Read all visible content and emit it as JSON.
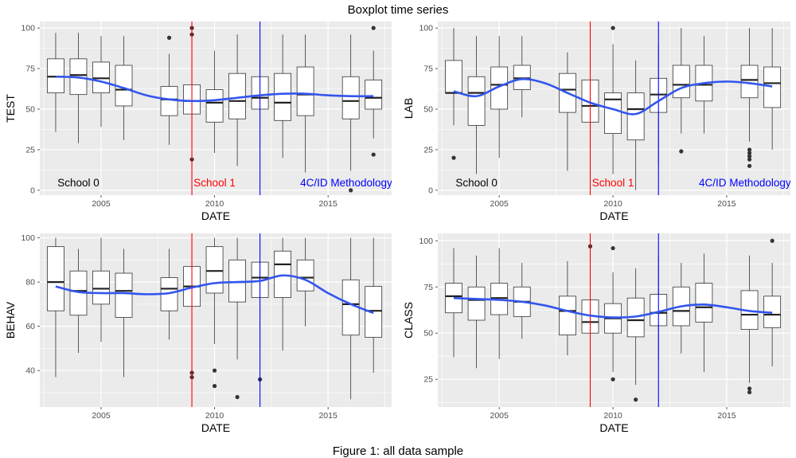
{
  "figure": {
    "title": "Boxplot time series",
    "caption": "Figure 1: all data sample"
  },
  "colors": {
    "panel_bg": "#ebebeb",
    "grid": "#ffffff",
    "box_fill": "#ffffff",
    "box_stroke": "#333333",
    "smooth": "#3355ee",
    "school1": "#ff0000",
    "method": "#0000ff"
  },
  "markers": [
    {
      "year": 2009,
      "label": "School 1",
      "color": "#ff0000"
    },
    {
      "year": 2012,
      "label": "4C/ID Methodology",
      "color": "#0000ff"
    }
  ],
  "chart_data": [
    {
      "type": "boxplot",
      "id": "test",
      "ylabel": "TEST",
      "xlabel": "DATE",
      "xlim": [
        2002.3,
        2017.8
      ],
      "ylim": [
        -3,
        104
      ],
      "xticks": [
        2005,
        2010,
        2015
      ],
      "yticks": [
        0,
        25,
        50,
        75,
        100
      ],
      "grid": true,
      "annotations": [
        {
          "x": 2004,
          "y": 2.5,
          "text": "School 0",
          "color": "#000000"
        },
        {
          "x": 2010,
          "y": 2.5,
          "text": "School 1",
          "color": "#ff0000"
        },
        {
          "x": 2015.8,
          "y": 2.5,
          "text": "4C/ID Methodology",
          "color": "#0000ff"
        }
      ],
      "boxes": [
        {
          "year": 2003,
          "lo": 36,
          "q1": 60,
          "median": 70,
          "q3": 81,
          "hi": 97,
          "outliers": []
        },
        {
          "year": 2004,
          "lo": 29,
          "q1": 59,
          "median": 71,
          "q3": 81,
          "hi": 97,
          "outliers": []
        },
        {
          "year": 2005,
          "lo": 39,
          "q1": 60,
          "median": 69,
          "q3": 79,
          "hi": 95,
          "outliers": []
        },
        {
          "year": 2006,
          "lo": 31,
          "q1": 52,
          "median": 62,
          "q3": 77,
          "hi": 95,
          "outliers": []
        },
        {
          "year": 2008,
          "lo": 28,
          "q1": 46,
          "median": 56,
          "q3": 64,
          "hi": 84,
          "outliers": [
            94
          ]
        },
        {
          "year": 2009,
          "lo": 29,
          "q1": 47,
          "median": 55,
          "q3": 65,
          "hi": 85,
          "outliers": [
            100,
            96,
            19
          ]
        },
        {
          "year": 2010,
          "lo": 23,
          "q1": 42,
          "median": 54,
          "q3": 62,
          "hi": 86,
          "outliers": []
        },
        {
          "year": 2011,
          "lo": 15,
          "q1": 44,
          "median": 55,
          "q3": 72,
          "hi": 96,
          "outliers": []
        },
        {
          "year": 2012,
          "lo": 30,
          "q1": 50,
          "median": 57,
          "q3": 70,
          "hi": 91,
          "outliers": []
        },
        {
          "year": 2013,
          "lo": 20,
          "q1": 43,
          "median": 54,
          "q3": 72,
          "hi": 96,
          "outliers": []
        },
        {
          "year": 2014,
          "lo": 11,
          "q1": 46,
          "median": 59,
          "q3": 76,
          "hi": 96,
          "outliers": []
        },
        {
          "year": 2016,
          "lo": 12,
          "q1": 44,
          "median": 55,
          "q3": 70,
          "hi": 96,
          "outliers": [
            0
          ]
        },
        {
          "year": 2017,
          "lo": 32,
          "q1": 50,
          "median": 57,
          "q3": 68,
          "hi": 86,
          "outliers": [
            100,
            22
          ]
        }
      ],
      "smooth": {
        "x": [
          2003,
          2004,
          2005,
          2006,
          2007,
          2008,
          2009,
          2010,
          2011,
          2012,
          2013,
          2014,
          2015,
          2016,
          2017
        ],
        "y": [
          70,
          69.5,
          67,
          63,
          58.5,
          56,
          55,
          55.5,
          57,
          58.5,
          59.5,
          59.5,
          58.5,
          58,
          58
        ]
      }
    },
    {
      "type": "boxplot",
      "id": "lab",
      "ylabel": "LAB",
      "xlabel": "DATE",
      "xlim": [
        2002.3,
        2017.8
      ],
      "ylim": [
        -3,
        104
      ],
      "xticks": [
        2005,
        2010,
        2015
      ],
      "yticks": [
        0,
        25,
        50,
        75,
        100
      ],
      "grid": true,
      "annotations": [
        {
          "x": 2004,
          "y": 2.5,
          "text": "School 0",
          "color": "#000000"
        },
        {
          "x": 2010,
          "y": 2.5,
          "text": "School 1",
          "color": "#ff0000"
        },
        {
          "x": 2015.8,
          "y": 2.5,
          "text": "4C/ID Methodology",
          "color": "#0000ff"
        }
      ],
      "boxes": [
        {
          "year": 2003,
          "lo": 40,
          "q1": 60,
          "median": 60,
          "q3": 80,
          "hi": 100,
          "outliers": [
            20
          ]
        },
        {
          "year": 2004,
          "lo": 10,
          "q1": 40,
          "median": 60,
          "q3": 70,
          "hi": 95,
          "outliers": []
        },
        {
          "year": 2005,
          "lo": 20,
          "q1": 50,
          "median": 65,
          "q3": 76,
          "hi": 95,
          "outliers": []
        },
        {
          "year": 2006,
          "lo": 45,
          "q1": 62,
          "median": 69,
          "q3": 77,
          "hi": 95,
          "outliers": []
        },
        {
          "year": 2008,
          "lo": 12,
          "q1": 48,
          "median": 62,
          "q3": 72,
          "hi": 85,
          "outliers": []
        },
        {
          "year": 2009,
          "lo": 20,
          "q1": 42,
          "median": 52,
          "q3": 68,
          "hi": 82,
          "outliers": []
        },
        {
          "year": 2010,
          "lo": 10,
          "q1": 35,
          "median": 56,
          "q3": 60,
          "hi": 90,
          "outliers": [
            100
          ]
        },
        {
          "year": 2011,
          "lo": 0,
          "q1": 31,
          "median": 50,
          "q3": 60,
          "hi": 80,
          "outliers": []
        },
        {
          "year": 2012,
          "lo": 15,
          "q1": 48,
          "median": 59,
          "q3": 69,
          "hi": 90,
          "outliers": []
        },
        {
          "year": 2013,
          "lo": 35,
          "q1": 57,
          "median": 65,
          "q3": 77,
          "hi": 100,
          "outliers": [
            24
          ]
        },
        {
          "year": 2014,
          "lo": 35,
          "q1": 55,
          "median": 65,
          "q3": 77,
          "hi": 95,
          "outliers": []
        },
        {
          "year": 2016,
          "lo": 30,
          "q1": 57,
          "median": 68,
          "q3": 77,
          "hi": 100,
          "outliers": [
            25,
            23,
            21,
            19,
            15
          ]
        },
        {
          "year": 2017,
          "lo": 25,
          "q1": 51,
          "median": 66,
          "q3": 76,
          "hi": 100,
          "outliers": []
        }
      ],
      "smooth": {
        "x": [
          2003,
          2004,
          2005,
          2006,
          2007,
          2008,
          2009,
          2010,
          2011,
          2012,
          2013,
          2014,
          2015,
          2016,
          2017
        ],
        "y": [
          61,
          58,
          64,
          68.5,
          66,
          60,
          54,
          50,
          47,
          55,
          63,
          66,
          67,
          66,
          64
        ]
      }
    },
    {
      "type": "boxplot",
      "id": "behav",
      "ylabel": "BEHAV",
      "xlabel": "DATE",
      "xlim": [
        2002.3,
        2017.8
      ],
      "ylim": [
        23.5,
        102
      ],
      "xticks": [
        2005,
        2010,
        2015
      ],
      "yticks": [
        40,
        60,
        80,
        100
      ],
      "grid": true,
      "annotations": [],
      "boxes": [
        {
          "year": 2003,
          "lo": 37,
          "q1": 67,
          "median": 80,
          "q3": 96,
          "hi": 100,
          "outliers": []
        },
        {
          "year": 2004,
          "lo": 48,
          "q1": 65,
          "median": 76,
          "q3": 85,
          "hi": 95,
          "outliers": []
        },
        {
          "year": 2005,
          "lo": 53,
          "q1": 70,
          "median": 77,
          "q3": 85,
          "hi": 100,
          "outliers": []
        },
        {
          "year": 2006,
          "lo": 37,
          "q1": 64,
          "median": 76,
          "q3": 84,
          "hi": 95,
          "outliers": []
        },
        {
          "year": 2008,
          "lo": 54,
          "q1": 67,
          "median": 77,
          "q3": 82,
          "hi": 95,
          "outliers": []
        },
        {
          "year": 2009,
          "lo": 52,
          "q1": 69,
          "median": 78,
          "q3": 87,
          "hi": 100,
          "outliers": [
            39,
            37
          ]
        },
        {
          "year": 2010,
          "lo": 52,
          "q1": 75,
          "median": 85,
          "q3": 96,
          "hi": 100,
          "outliers": [
            40,
            33
          ]
        },
        {
          "year": 2011,
          "lo": 45,
          "q1": 71,
          "median": 80,
          "q3": 90,
          "hi": 100,
          "outliers": [
            28
          ]
        },
        {
          "year": 2012,
          "lo": 50,
          "q1": 73,
          "median": 82,
          "q3": 89,
          "hi": 100,
          "outliers": [
            36
          ]
        },
        {
          "year": 2013,
          "lo": 49,
          "q1": 73,
          "median": 88,
          "q3": 94,
          "hi": 100,
          "outliers": []
        },
        {
          "year": 2014,
          "lo": 60,
          "q1": 76,
          "median": 82,
          "q3": 90,
          "hi": 100,
          "outliers": []
        },
        {
          "year": 2016,
          "lo": 27,
          "q1": 56,
          "median": 70,
          "q3": 81,
          "hi": 100,
          "outliers": []
        },
        {
          "year": 2017,
          "lo": 39,
          "q1": 55,
          "median": 67,
          "q3": 78,
          "hi": 100,
          "outliers": []
        }
      ],
      "smooth": {
        "x": [
          2003,
          2004,
          2005,
          2006,
          2007,
          2008,
          2009,
          2010,
          2011,
          2012,
          2013,
          2014,
          2015,
          2016,
          2017
        ],
        "y": [
          78,
          75.5,
          75,
          75,
          74.5,
          75,
          77.5,
          79.5,
          80,
          80.5,
          83,
          81,
          75,
          70,
          66
        ]
      }
    },
    {
      "type": "boxplot",
      "id": "class",
      "ylabel": "CLASS",
      "xlabel": "DATE",
      "xlim": [
        2002.3,
        2017.8
      ],
      "ylim": [
        10,
        104
      ],
      "xticks": [
        2005,
        2010,
        2015
      ],
      "yticks": [
        25,
        50,
        75,
        100
      ],
      "grid": true,
      "annotations": [],
      "boxes": [
        {
          "year": 2003,
          "lo": 37,
          "q1": 61,
          "median": 70,
          "q3": 77,
          "hi": 96,
          "outliers": []
        },
        {
          "year": 2004,
          "lo": 31,
          "q1": 57,
          "median": 68,
          "q3": 75,
          "hi": 92,
          "outliers": []
        },
        {
          "year": 2005,
          "lo": 36,
          "q1": 60,
          "median": 69,
          "q3": 77,
          "hi": 96,
          "outliers": []
        },
        {
          "year": 2006,
          "lo": 47,
          "q1": 59,
          "median": 67,
          "q3": 75,
          "hi": 88,
          "outliers": []
        },
        {
          "year": 2008,
          "lo": 38,
          "q1": 49,
          "median": 62,
          "q3": 70,
          "hi": 89,
          "outliers": []
        },
        {
          "year": 2009,
          "lo": 38,
          "q1": 50,
          "median": 56,
          "q3": 68,
          "hi": 88,
          "outliers": [
            97
          ]
        },
        {
          "year": 2010,
          "lo": 29,
          "q1": 50,
          "median": 58,
          "q3": 66,
          "hi": 83,
          "outliers": [
            96,
            25
          ]
        },
        {
          "year": 2011,
          "lo": 22,
          "q1": 48,
          "median": 57,
          "q3": 69,
          "hi": 85,
          "outliers": [
            14
          ]
        },
        {
          "year": 2012,
          "lo": 35,
          "q1": 54,
          "median": 61,
          "q3": 71,
          "hi": 92,
          "outliers": []
        },
        {
          "year": 2013,
          "lo": 39,
          "q1": 54,
          "median": 62,
          "q3": 75,
          "hi": 88,
          "outliers": []
        },
        {
          "year": 2014,
          "lo": 29,
          "q1": 56,
          "median": 64,
          "q3": 77,
          "hi": 93,
          "outliers": []
        },
        {
          "year": 2016,
          "lo": 23,
          "q1": 52,
          "median": 60,
          "q3": 73,
          "hi": 92,
          "outliers": [
            20,
            18
          ]
        },
        {
          "year": 2017,
          "lo": 32,
          "q1": 53,
          "median": 60,
          "q3": 70,
          "hi": 88,
          "outliers": [
            100
          ]
        }
      ],
      "smooth": {
        "x": [
          2003,
          2004,
          2005,
          2006,
          2007,
          2008,
          2009,
          2010,
          2011,
          2012,
          2013,
          2014,
          2015,
          2016,
          2017
        ],
        "y": [
          69,
          68.5,
          68,
          67,
          65,
          62,
          59.5,
          58.5,
          59,
          61.5,
          64.5,
          65.5,
          64,
          62,
          61
        ]
      }
    }
  ]
}
